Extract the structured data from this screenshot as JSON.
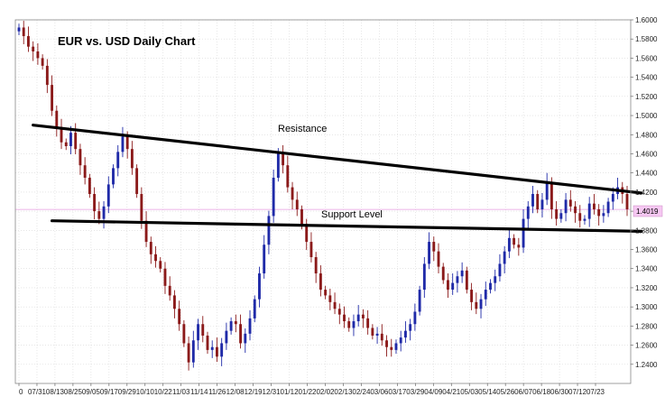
{
  "chart_data": {
    "type": "candlestick",
    "title": "EUR vs. USD Daily Chart",
    "xlabel": "",
    "ylabel": "",
    "ylim": [
      1.22,
      1.6
    ],
    "grid": true,
    "y_ticks": [
      "1.6000",
      "1.5800",
      "1.5600",
      "1.5400",
      "1.5200",
      "1.5000",
      "1.4800",
      "1.4600",
      "1.4400",
      "1.4200",
      "1.4000",
      "1.3800",
      "1.3600",
      "1.3400",
      "1.3200",
      "1.3000",
      "1.2800",
      "1.2600",
      "1.2400"
    ],
    "x_ticks": [
      "0",
      "07/31",
      "08/13",
      "08/25",
      "09/05",
      "09/17",
      "09/29",
      "10/10",
      "10/22",
      "11/03",
      "11/14",
      "11/26",
      "12/08",
      "12/19",
      "12/31",
      "01/12",
      "01/22",
      "02/02",
      "02/13",
      "02/24",
      "03/06",
      "03/17",
      "03/29",
      "04/09",
      "04/21",
      "05/03",
      "05/14",
      "05/26",
      "06/07",
      "06/18",
      "06/30",
      "07/12",
      "07/23"
    ],
    "current_price": "1.4019",
    "series": [
      {
        "values": [
          1.592,
          1.583,
          1.572,
          1.567,
          1.56,
          1.552,
          1.532,
          1.505,
          1.488,
          1.472,
          1.468,
          1.482,
          1.465,
          1.448,
          1.435,
          1.418,
          1.4,
          1.392,
          1.405,
          1.428,
          1.445,
          1.462,
          1.478,
          1.465,
          1.445,
          1.418,
          1.39,
          1.368,
          1.355,
          1.348,
          1.34,
          1.322,
          1.312,
          1.298,
          1.282,
          1.262,
          1.242,
          1.265,
          1.282,
          1.27,
          1.255,
          1.258,
          1.248,
          1.262,
          1.275,
          1.285,
          1.282,
          1.262,
          1.272,
          1.288,
          1.308,
          1.335,
          1.365,
          1.395,
          1.435,
          1.462,
          1.448,
          1.425,
          1.412,
          1.402,
          1.385,
          1.368,
          1.352,
          1.335,
          1.318,
          1.312,
          1.305,
          1.298,
          1.292,
          1.285,
          1.278,
          1.285,
          1.292,
          1.288,
          1.278,
          1.27,
          1.272,
          1.265,
          1.258,
          1.255,
          1.262,
          1.268,
          1.275,
          1.282,
          1.295,
          1.318,
          1.345,
          1.368,
          1.358,
          1.342,
          1.328,
          1.318,
          1.325,
          1.332,
          1.338,
          1.318,
          1.305,
          1.298,
          1.308,
          1.318,
          1.325,
          1.332,
          1.345,
          1.358,
          1.372,
          1.365,
          1.362,
          1.392,
          1.405,
          1.418,
          1.402,
          1.412,
          1.43,
          1.402,
          1.392,
          1.398,
          1.412,
          1.405,
          1.398,
          1.39,
          1.392,
          1.408,
          1.402,
          1.395,
          1.398,
          1.41,
          1.418,
          1.425,
          1.418,
          1.402
        ]
      }
    ],
    "annotations": [
      {
        "text": "Resistance",
        "type": "trendline",
        "from": [
          3,
          1.49
        ],
        "to": [
          131,
          1.419
        ]
      },
      {
        "text": "Support Level",
        "type": "trendline",
        "from": [
          7,
          1.39
        ],
        "to": [
          131,
          1.379
        ]
      }
    ]
  }
}
